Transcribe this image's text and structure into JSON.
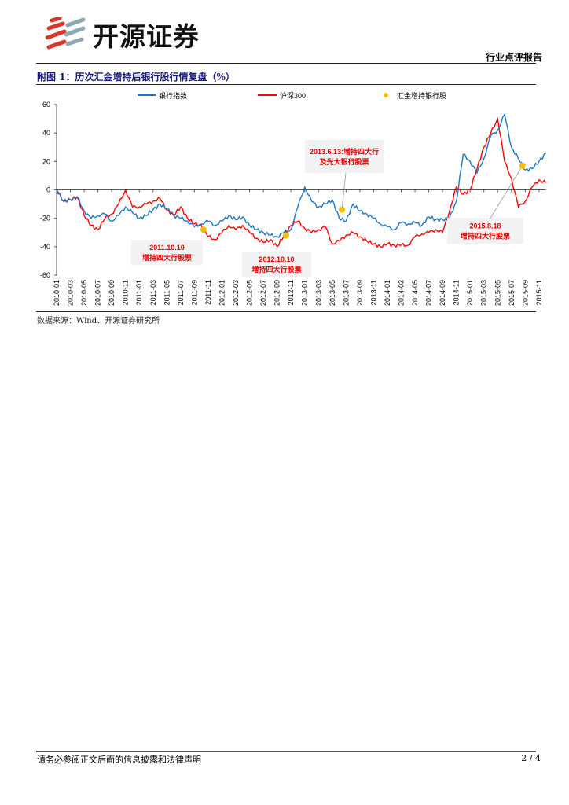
{
  "header": {
    "logo_text": "开源证券",
    "report_type": "行业点评报告"
  },
  "figure": {
    "title": "附图 1：历次汇金增持后银行股行情复盘（%）",
    "source": "数据来源：Wind、开源证券研究所"
  },
  "footer": {
    "disclaimer": "请务必参阅正文后面的信息披露和法律声明",
    "page": "2 / 4"
  },
  "colors": {
    "bank": "#1f77c4",
    "hs300": "#ff0000",
    "marker": "#f5c000",
    "annotation_bg": "#f2f2f2",
    "title": "#1a1a7a"
  },
  "chart_data": {
    "type": "line",
    "title": "历次汇金增持后银行股行情复盘（%）",
    "xlabel": "",
    "ylabel": "",
    "ylim": [
      -60,
      60
    ],
    "y_ticks": [
      60,
      40,
      20,
      0,
      -20,
      -40,
      -60
    ],
    "x_unit": "months since 2010-01",
    "xlim": [
      0,
      71
    ],
    "x_ticks": [
      "2010-01",
      "2010-03",
      "2010-05",
      "2010-07",
      "2010-09",
      "2010-11",
      "2011-01",
      "2011-03",
      "2011-05",
      "2011-07",
      "2011-09",
      "2011-11",
      "2012-01",
      "2012-03",
      "2012-05",
      "2012-07",
      "2012-09",
      "2012-11",
      "2013-01",
      "2013-03",
      "2013-05",
      "2013-07",
      "2013-09",
      "2013-11",
      "2014-01",
      "2014-03",
      "2014-05",
      "2014-07",
      "2014-09",
      "2014-11",
      "2015-01",
      "2015-03",
      "2015-05",
      "2015-07",
      "2015-09",
      "2015-11"
    ],
    "legend": {
      "placement": "top",
      "entries": [
        "银行指数",
        "沪深300",
        "汇金增持银行股"
      ]
    },
    "series": [
      {
        "name": "银行指数",
        "values": [
          0,
          -8,
          -7,
          -5,
          -15,
          -20,
          -18,
          -17,
          -22,
          -18,
          -12,
          -16,
          -20,
          -18,
          -14,
          -10,
          -13,
          -18,
          -20,
          -22,
          -26,
          -24,
          -22,
          -25,
          -22,
          -18,
          -21,
          -19,
          -25,
          -28,
          -30,
          -32,
          -33,
          -30,
          -28,
          -12,
          2,
          -8,
          -12,
          -10,
          -7,
          -20,
          -22,
          -10,
          -15,
          -17,
          -20,
          -24,
          -26,
          -28,
          -23,
          -24,
          -23,
          -25,
          -19,
          -21,
          -21,
          -20,
          -8,
          25,
          20,
          12,
          22,
          38,
          42,
          53,
          30,
          22,
          14,
          15,
          20,
          26
        ]
      },
      {
        "name": "沪深300",
        "values": [
          0,
          -8,
          -7,
          -5,
          -18,
          -25,
          -28,
          -20,
          -17,
          -10,
          0,
          -12,
          -12,
          -10,
          -8,
          -6,
          -14,
          -18,
          -12,
          -20,
          -24,
          -25,
          -33,
          -35,
          -30,
          -25,
          -28,
          -25,
          -30,
          -34,
          -37,
          -35,
          -40,
          -32,
          -25,
          -22,
          -27,
          -30,
          -28,
          -26,
          -38,
          -36,
          -32,
          -30,
          -33,
          -36,
          -38,
          -40,
          -38,
          -39,
          -39,
          -39,
          -33,
          -31,
          -30,
          -28,
          -30,
          -15,
          2,
          -3,
          0,
          15,
          30,
          40,
          50,
          20,
          8,
          -12,
          -8,
          2,
          7,
          5
        ]
      }
    ],
    "events": [
      {
        "x": 21.3,
        "y": -28,
        "date": "2011.10.10",
        "text": "增持四大行股票"
      },
      {
        "x": 33.3,
        "y": -32,
        "date": "2012.10.10",
        "text": "增持四大行股票"
      },
      {
        "x": 41.4,
        "y": -14,
        "date": "2013.6.13:增持四大行",
        "text": "及光大银行股票"
      },
      {
        "x": 67.6,
        "y": 17,
        "date": "2015.8.18",
        "text": "增持四大行股票"
      }
    ]
  }
}
